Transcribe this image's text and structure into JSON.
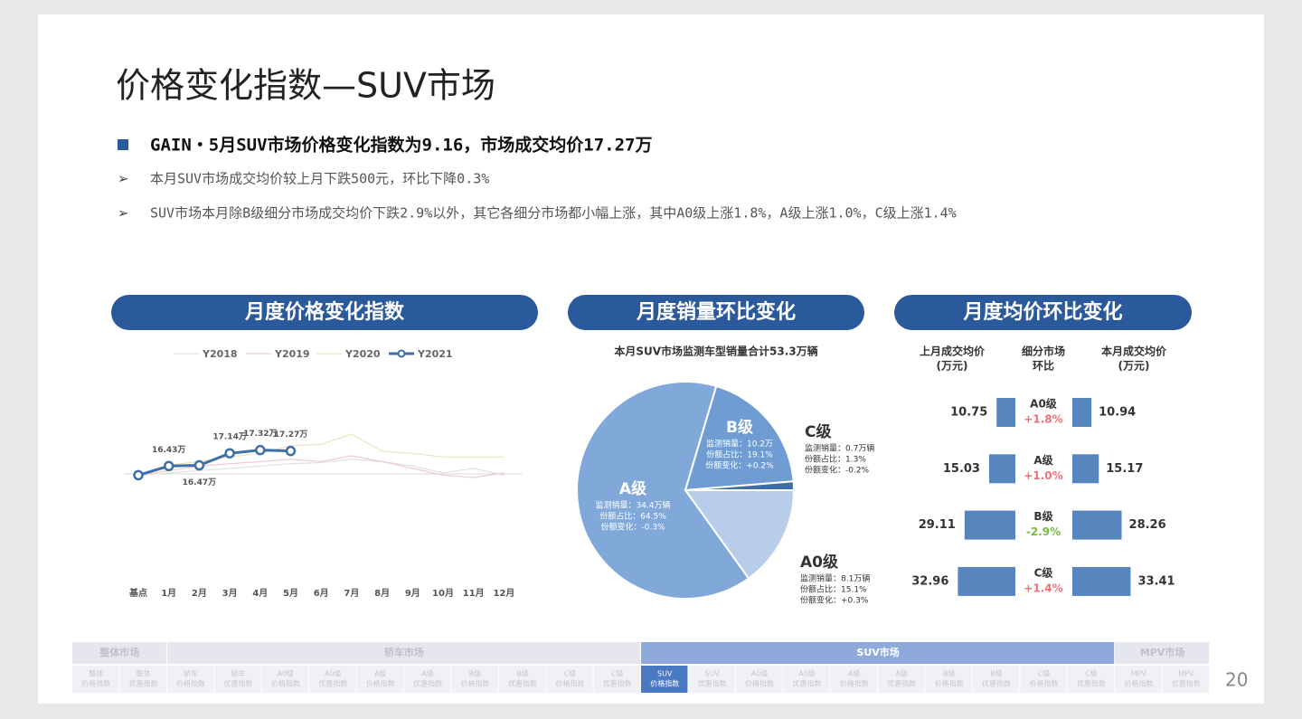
{
  "title": "价格变化指数—SUV市场",
  "headline": "GAIN・5月SUV市场价格变化指数为9.16，市场成交均价17.27万",
  "bullets": [
    "本月SUV市场成交均价较上月下跌500元，环比下降0.3%",
    "SUV市场本月除B级细分市场成交均价下跌2.9%以外，其它各细分市场都小幅上涨，其中A0级上涨1.8%，A级上涨1.0%，C级上涨1.4%"
  ],
  "panel_headers": [
    "月度价格变化指数",
    "月度销量环比变化",
    "月度均价环比变化"
  ],
  "chart_data": [
    {
      "type": "line",
      "legend": "top",
      "categories": [
        "基点",
        "1月",
        "2月",
        "3月",
        "4月",
        "5月",
        "6月",
        "7月",
        "8月",
        "9月",
        "10月",
        "11月",
        "12月"
      ],
      "series": [
        {
          "name": "Y2018",
          "color": "#dfe2da",
          "values": [
            15.92,
            16.05,
            16.17,
            16.3,
            16.43,
            16.56,
            16.62,
            16.81,
            16.68,
            16.43,
            16.05,
            16.3,
            15.92
          ]
        },
        {
          "name": "Y2019",
          "color": "#f2c9ce",
          "values": [
            15.92,
            16.17,
            16.43,
            16.56,
            16.68,
            16.81,
            16.68,
            17.0,
            16.68,
            16.3,
            15.92,
            15.79,
            16.05
          ]
        },
        {
          "name": "Y2020",
          "color": "#ebe3bd",
          "values": [
            15.92,
            16.49,
            16.68,
            16.94,
            17.13,
            17.57,
            17.64,
            18.21,
            17.26,
            17.13,
            16.94,
            16.94,
            16.94
          ]
        },
        {
          "name": "Y2021",
          "color": "#3e6fa6",
          "markers": true,
          "values": [
            15.92,
            16.43,
            16.47,
            17.14,
            17.32,
            17.27,
            null,
            null,
            null,
            null,
            null,
            null,
            null
          ],
          "value_labels": [
            null,
            "16.43万",
            "16.47万",
            "17.14万",
            "17.32万",
            "17.27万",
            null,
            null,
            null,
            null,
            null,
            null,
            null
          ]
        }
      ]
    },
    {
      "type": "pie",
      "title": "本月SUV市场监测车型销量合计53.3万辆",
      "categories": [
        "A0级",
        "A级",
        "B级",
        "C级"
      ],
      "values": [
        15.1,
        64.5,
        19.1,
        1.3
      ],
      "colors": [
        "#b8cde9",
        "#80a9da",
        "#6f9dd3",
        "#3f6ea6"
      ],
      "details": [
        [
          "监测销量：8.1万辆",
          "份额占比：15.1%",
          "份额变化：+0.3%"
        ],
        [
          "监测销量：34.4万辆",
          "份额占比：64.5%",
          "份额变化：-0.3%"
        ],
        [
          "监测销量：10.2万",
          "份额占比：19.1%",
          "份额变化：+0.2%"
        ],
        [
          "监测销量：0.7万辆",
          "份额占比：1.3%",
          "份额变化：-0.2%"
        ]
      ]
    }
  ],
  "table": {
    "headers": [
      [
        "上月成交均价",
        "(万元)"
      ],
      [
        "细分市场",
        "环比"
      ],
      [
        "本月成交均价",
        "(万元)"
      ]
    ],
    "color": "#5785bd",
    "rows": [
      {
        "segment": "A0级",
        "last": 10.75,
        "current": 10.94,
        "change": 1.8,
        "change_label": "+1.8%"
      },
      {
        "segment": "A级",
        "last": 15.03,
        "current": 15.17,
        "change": 1.0,
        "change_label": "+1.0%"
      },
      {
        "segment": "B级",
        "last": 29.11,
        "current": 28.26,
        "change": -2.9,
        "change_label": "-2.9%"
      },
      {
        "segment": "C级",
        "last": 32.96,
        "current": 33.41,
        "change": 1.4,
        "change_label": "+1.4%"
      }
    ]
  },
  "nav": [
    {
      "label": "整体市场",
      "items": [
        [
          "整体",
          "价格指数"
        ],
        [
          "整体",
          "优惠指数"
        ]
      ]
    },
    {
      "label": "轿车市场",
      "items": [
        [
          "轿车",
          "价格指数"
        ],
        [
          "轿车",
          "优惠指数"
        ],
        [
          "A0级",
          "价格指数"
        ],
        [
          "A0级",
          "优惠指数"
        ],
        [
          "A级",
          "价格指数"
        ],
        [
          "A级",
          "优惠指数"
        ],
        [
          "B级",
          "价格指数"
        ],
        [
          "B级",
          "优惠指数"
        ],
        [
          "C级",
          "价格指数"
        ],
        [
          "C级",
          "优惠指数"
        ]
      ]
    },
    {
      "label": "SUV市场",
      "active": true,
      "active_item": 0,
      "items": [
        [
          "SUV",
          "价格指数"
        ],
        [
          "SUV",
          "优惠指数"
        ],
        [
          "A0级",
          "价格指数"
        ],
        [
          "A0级",
          "优惠指数"
        ],
        [
          "A级",
          "价格指数"
        ],
        [
          "A级",
          "优惠指数"
        ],
        [
          "B级",
          "价格指数"
        ],
        [
          "B级",
          "优惠指数"
        ],
        [
          "C级",
          "价格指数"
        ],
        [
          "C级",
          "优惠指数"
        ]
      ]
    },
    {
      "label": "MPV市场",
      "items": [
        [
          "MPV",
          "价格指数"
        ],
        [
          "MPV",
          "优惠指数"
        ]
      ]
    }
  ],
  "page_number": "20"
}
